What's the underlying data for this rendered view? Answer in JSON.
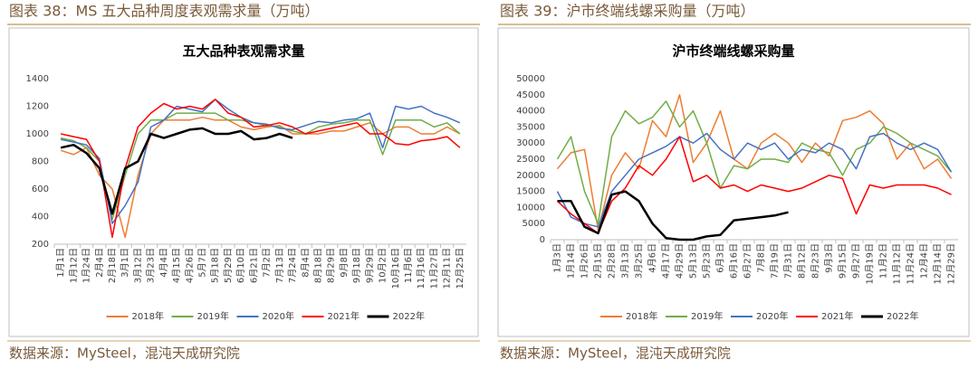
{
  "captions": [
    "图表 38：MS 五大品种周度表观需求量（万吨）",
    "图表 39：沪市终端线螺采购量（万吨）"
  ],
  "sources": [
    "数据来源：MySteel，混沌天成研究院",
    "数据来源：MySteel，混沌天成研究院"
  ],
  "chart_data": [
    {
      "type": "line",
      "title": "五大品种表观需求量",
      "categories": [
        "1月1日",
        "1月12日",
        "1月24日",
        "2月4日",
        "2月18日",
        "3月1日",
        "3月12日",
        "3月23日",
        "4月4日",
        "4月15日",
        "4月26日",
        "5月7日",
        "5月18日",
        "5月29日",
        "6月10日",
        "6月21日",
        "7月2日",
        "7月13日",
        "7月24日",
        "8月4日",
        "8月18日",
        "8月29日",
        "9月8日",
        "9月18日",
        "9月29日",
        "10月2日",
        "10月16日",
        "11月6日",
        "11月16日",
        "11月27日",
        "12月11日",
        "12月25日"
      ],
      "ylim": [
        200,
        1400
      ],
      "yticks": [
        200,
        400,
        600,
        800,
        1000,
        1200,
        1400
      ],
      "grid": false,
      "legend": "bottom",
      "series": [
        {
          "name": "2018年",
          "color": "#ed7d31",
          "values": [
            880,
            850,
            900,
            700,
            600,
            250,
            700,
            1000,
            1100,
            1100,
            1100,
            1120,
            1100,
            1100,
            1050,
            1030,
            1050,
            1060,
            1000,
            1000,
            1000,
            1020,
            1020,
            1050,
            1080,
            1000,
            1050,
            1050,
            1000,
            1000,
            1050,
            1000
          ]
        },
        {
          "name": "2019年",
          "color": "#70ad47",
          "values": [
            970,
            950,
            900,
            800,
            380,
            700,
            1000,
            1100,
            1100,
            1150,
            1150,
            1150,
            1150,
            1100,
            1100,
            1080,
            1060,
            1050,
            1020,
            1000,
            1050,
            1070,
            1080,
            1100,
            1100,
            850,
            1100,
            1100,
            1100,
            1050,
            1080,
            1000
          ]
        },
        {
          "name": "2020年",
          "color": "#4472c4",
          "values": [
            960,
            940,
            920,
            820,
            350,
            480,
            650,
            1050,
            1100,
            1200,
            1180,
            1160,
            1250,
            1180,
            1120,
            1080,
            1070,
            1040,
            1030,
            1060,
            1090,
            1080,
            1100,
            1110,
            1150,
            900,
            1200,
            1180,
            1200,
            1150,
            1120,
            1080
          ]
        },
        {
          "name": "2021年",
          "color": "#ff0000",
          "values": [
            1000,
            980,
            960,
            800,
            250,
            750,
            1050,
            1150,
            1220,
            1180,
            1200,
            1180,
            1250,
            1150,
            1120,
            1050,
            1060,
            1080,
            1050,
            1000,
            1020,
            1040,
            1060,
            1080,
            1000,
            1000,
            930,
            920,
            950,
            960,
            980,
            900
          ]
        },
        {
          "name": "2022年",
          "color": "#000000",
          "values": [
            900,
            920,
            860,
            750,
            420,
            750,
            800,
            1000,
            970,
            1000,
            1030,
            1040,
            1000,
            1000,
            1020,
            960,
            970,
            1000,
            970,
            null,
            null,
            null,
            null,
            null,
            null,
            null,
            null,
            null,
            null,
            null,
            null,
            null
          ]
        }
      ]
    },
    {
      "type": "line",
      "title": "沪市终端线螺采购量",
      "categories": [
        "1月3日",
        "1月14日",
        "1月26日",
        "2月15日",
        "2月28日",
        "3月13日",
        "3月25日",
        "4月6日",
        "4月17日",
        "4月29日",
        "5月13日",
        "5月23日",
        "6月3日",
        "6月16日",
        "6月27日",
        "7月8日",
        "7月19日",
        "7月31日",
        "8月12日",
        "8月23日",
        "9月3日",
        "9月15日",
        "9月27日",
        "10月19日",
        "11月2日",
        "11月12日",
        "11月24日",
        "12月4日",
        "12月14日",
        "12月29日"
      ],
      "ylim": [
        0,
        50000
      ],
      "yticks": [
        0,
        5000,
        10000,
        15000,
        20000,
        25000,
        30000,
        35000,
        40000,
        45000,
        50000
      ],
      "grid": false,
      "legend": "bottom",
      "series": [
        {
          "name": "2018年",
          "color": "#ed7d31",
          "values": [
            22000,
            27000,
            28000,
            3000,
            20000,
            27000,
            22000,
            37000,
            32000,
            45000,
            24000,
            30000,
            40000,
            25000,
            22000,
            30000,
            33000,
            30000,
            24000,
            30000,
            26000,
            37000,
            38000,
            40000,
            36000,
            25000,
            30000,
            22000,
            25000,
            19000
          ]
        },
        {
          "name": "2019年",
          "color": "#70ad47",
          "values": [
            25000,
            32000,
            15000,
            5000,
            32000,
            40000,
            36000,
            38000,
            43000,
            35000,
            40000,
            30000,
            16000,
            23000,
            22000,
            25000,
            25000,
            24000,
            30000,
            28000,
            27000,
            20000,
            28000,
            30000,
            35000,
            33000,
            30000,
            28000,
            26000,
            21000
          ]
        },
        {
          "name": "2020年",
          "color": "#4472c4",
          "values": [
            15000,
            7000,
            5000,
            4000,
            15000,
            20000,
            25000,
            27000,
            29000,
            32000,
            30000,
            33000,
            28000,
            25000,
            30000,
            28000,
            30000,
            25000,
            28000,
            27000,
            30000,
            28000,
            22000,
            32000,
            33000,
            30000,
            28000,
            30000,
            28000,
            21000
          ]
        },
        {
          "name": "2021年",
          "color": "#ff0000",
          "values": [
            12000,
            8000,
            5000,
            2000,
            12000,
            16000,
            23000,
            20000,
            25000,
            32000,
            18000,
            20000,
            16000,
            17000,
            15000,
            17000,
            16000,
            15000,
            16000,
            18000,
            20000,
            19000,
            8000,
            17000,
            16000,
            17000,
            17000,
            17000,
            16000,
            14000
          ]
        },
        {
          "name": "2022年",
          "color": "#000000",
          "values": [
            12000,
            12000,
            4000,
            2000,
            14000,
            15000,
            12000,
            5000,
            500,
            0,
            0,
            1000,
            1500,
            6000,
            6500,
            7000,
            7500,
            8500,
            null,
            null,
            null,
            null,
            null,
            null,
            null,
            null,
            null,
            null,
            null,
            null
          ]
        }
      ]
    }
  ]
}
